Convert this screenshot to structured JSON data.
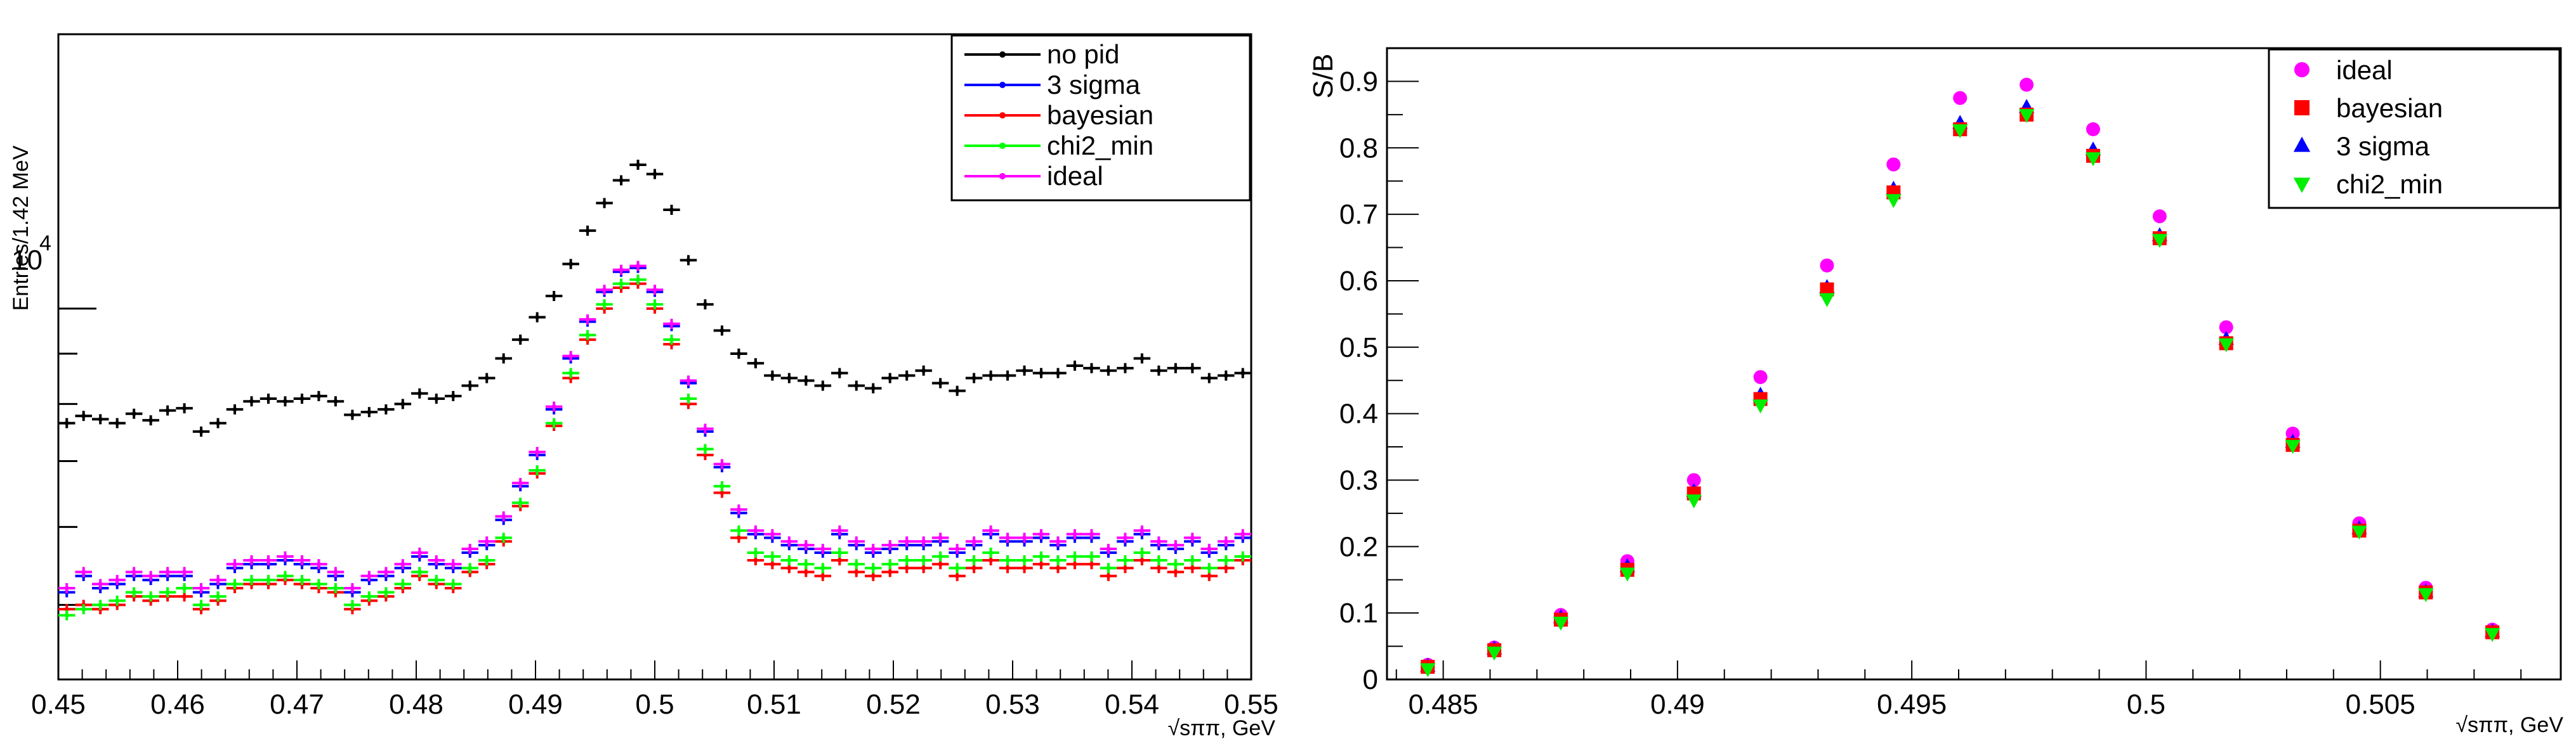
{
  "chart_data": [
    {
      "type": "scatter",
      "title": "",
      "xlabel": "√sππ, GeV",
      "ylabel": "Entries/1.42 MeV",
      "xlim": [
        0.45,
        0.55
      ],
      "ylim_log": [
        4200,
        19000
      ],
      "y_scale": "log",
      "x_ticks": [
        0.45,
        0.46,
        0.47,
        0.48,
        0.49,
        0.5,
        0.51,
        0.52,
        0.53,
        0.54,
        0.55
      ],
      "x_tick_labels": [
        "0.45",
        "0.46",
        "0.47",
        "0.48",
        "0.49",
        "0.5",
        "0.51",
        "0.52",
        "0.53",
        "0.54",
        "0.55"
      ],
      "y_tick_base": "10",
      "y_tick_exp": "4",
      "legend_position": "top-right",
      "series": [
        {
          "name": "no pid",
          "color": "#000000",
          "values": [
            7650,
            7780,
            7720,
            7650,
            7820,
            7700,
            7880,
            7920,
            7500,
            7650,
            7900,
            8050,
            8100,
            8050,
            8100,
            8150,
            8050,
            7800,
            7850,
            7900,
            8000,
            8200,
            8100,
            8150,
            8350,
            8500,
            8900,
            9300,
            9800,
            10300,
            11100,
            12000,
            12800,
            13500,
            14000,
            13700,
            12600,
            11200,
            10100,
            9500,
            9000,
            8800,
            8550,
            8500,
            8450,
            8350,
            8600,
            8350,
            8300,
            8500,
            8550,
            8650,
            8400,
            8250,
            8500,
            8550,
            8550,
            8650,
            8600,
            8600,
            8750,
            8700,
            8650,
            8700,
            8900,
            8650,
            8700,
            8700,
            8500,
            8550,
            8600
          ]
        },
        {
          "name": "3 sigma",
          "color": "#0000ff",
          "values": [
            5150,
            5350,
            5200,
            5250,
            5350,
            5300,
            5350,
            5350,
            5150,
            5250,
            5450,
            5500,
            5500,
            5550,
            5500,
            5450,
            5350,
            5150,
            5300,
            5350,
            5450,
            5600,
            5500,
            5450,
            5650,
            5750,
            6100,
            6600,
            7100,
            7900,
            8900,
            9700,
            10400,
            10900,
            11000,
            10400,
            9600,
            8400,
            7500,
            6900,
            6200,
            5900,
            5850,
            5750,
            5700,
            5650,
            5900,
            5750,
            5650,
            5700,
            5750,
            5750,
            5800,
            5650,
            5750,
            5900,
            5800,
            5800,
            5850,
            5750,
            5850,
            5850,
            5650,
            5800,
            5900,
            5750,
            5700,
            5800,
            5650,
            5750,
            5850
          ]
        },
        {
          "name": "bayesian",
          "color": "#ff0000",
          "values": [
            4950,
            5000,
            4950,
            5000,
            5100,
            5050,
            5100,
            5100,
            4950,
            5050,
            5200,
            5250,
            5250,
            5300,
            5250,
            5200,
            5150,
            4950,
            5050,
            5100,
            5200,
            5350,
            5250,
            5200,
            5400,
            5500,
            5800,
            6300,
            6800,
            7600,
            8500,
            9300,
            10000,
            10500,
            10600,
            10000,
            9200,
            8000,
            7100,
            6500,
            5850,
            5550,
            5500,
            5450,
            5400,
            5350,
            5550,
            5400,
            5350,
            5400,
            5450,
            5450,
            5500,
            5350,
            5450,
            5550,
            5450,
            5450,
            5500,
            5450,
            5500,
            5500,
            5350,
            5450,
            5550,
            5450,
            5400,
            5450,
            5350,
            5450,
            5550
          ]
        },
        {
          "name": "chi2_min",
          "color": "#00ff00",
          "values": [
            4880,
            4950,
            5000,
            5050,
            5150,
            5100,
            5150,
            5200,
            5000,
            5100,
            5250,
            5300,
            5300,
            5350,
            5300,
            5250,
            5200,
            5000,
            5100,
            5150,
            5250,
            5400,
            5300,
            5250,
            5450,
            5550,
            5850,
            6350,
            6850,
            7650,
            8600,
            9400,
            10100,
            10600,
            10700,
            10100,
            9300,
            8100,
            7200,
            6600,
            5950,
            5650,
            5600,
            5550,
            5500,
            5450,
            5650,
            5500,
            5450,
            5500,
            5550,
            5550,
            5600,
            5450,
            5550,
            5650,
            5550,
            5550,
            5600,
            5550,
            5600,
            5600,
            5450,
            5550,
            5650,
            5550,
            5500,
            5550,
            5450,
            5550,
            5600
          ]
        },
        {
          "name": "ideal",
          "color": "#ff00ff",
          "values": [
            5200,
            5400,
            5250,
            5300,
            5400,
            5350,
            5400,
            5400,
            5200,
            5300,
            5500,
            5550,
            5550,
            5600,
            5550,
            5500,
            5400,
            5200,
            5350,
            5400,
            5500,
            5650,
            5550,
            5500,
            5700,
            5800,
            6150,
            6650,
            7150,
            7950,
            8950,
            9750,
            10450,
            10950,
            11050,
            10450,
            9650,
            8450,
            7550,
            6950,
            6250,
            5950,
            5900,
            5800,
            5750,
            5700,
            5950,
            5800,
            5700,
            5750,
            5800,
            5800,
            5850,
            5700,
            5800,
            5950,
            5850,
            5850,
            5900,
            5800,
            5900,
            5900,
            5700,
            5850,
            5950,
            5800,
            5750,
            5850,
            5700,
            5800,
            5900
          ]
        }
      ]
    },
    {
      "type": "scatter",
      "title": "",
      "xlabel": "√sππ, GeV",
      "ylabel": "S/B",
      "xlim": [
        0.4838,
        0.50885
      ],
      "ylim": [
        0,
        0.95
      ],
      "x": [
        0.48467,
        0.48609,
        0.48751,
        0.48893,
        0.49035,
        0.49177,
        0.49319,
        0.49461,
        0.49603,
        0.49745,
        0.49887,
        0.50029,
        0.50171,
        0.50313,
        0.50455,
        0.50597,
        0.50739
      ],
      "x_ticks": [
        0.485,
        0.49,
        0.495,
        0.5,
        0.505
      ],
      "x_tick_labels": [
        "0.485",
        "0.49",
        "0.495",
        "0.5",
        "0.505"
      ],
      "y_ticks": [
        0,
        0.1,
        0.2,
        0.3,
        0.4,
        0.5,
        0.6,
        0.7,
        0.8,
        0.9
      ],
      "y_tick_labels": [
        "0",
        "0.1",
        "0.2",
        "0.3",
        "0.4",
        "0.5",
        "0.6",
        "0.7",
        "0.8",
        "0.9"
      ],
      "legend_position": "top-right",
      "series": [
        {
          "name": "ideal",
          "marker": "circle",
          "color": "#ff00ff",
          "values": [
            0.022,
            0.048,
            0.097,
            0.178,
            0.3,
            0.455,
            0.623,
            0.775,
            0.875,
            0.895,
            0.828,
            0.697,
            0.53,
            0.37,
            0.235,
            0.138,
            0.075
          ]
        },
        {
          "name": "bayesian",
          "marker": "square",
          "color": "#ff0000",
          "values": [
            0.019,
            0.044,
            0.09,
            0.165,
            0.28,
            0.422,
            0.587,
            0.733,
            0.828,
            0.85,
            0.788,
            0.664,
            0.506,
            0.353,
            0.224,
            0.131,
            0.071
          ]
        },
        {
          "name": "3 sigma",
          "marker": "triangle-up",
          "color": "#0000ff",
          "values": [
            0.02,
            0.046,
            0.093,
            0.17,
            0.283,
            0.428,
            0.59,
            0.738,
            0.837,
            0.861,
            0.797,
            0.668,
            0.512,
            0.357,
            0.227,
            0.132,
            0.072
          ]
        },
        {
          "name": "chi2_min",
          "marker": "triangle-down",
          "color": "#00ee00",
          "values": [
            0.016,
            0.041,
            0.086,
            0.16,
            0.27,
            0.413,
            0.573,
            0.722,
            0.827,
            0.85,
            0.785,
            0.662,
            0.505,
            0.352,
            0.223,
            0.129,
            0.069
          ]
        }
      ]
    }
  ]
}
